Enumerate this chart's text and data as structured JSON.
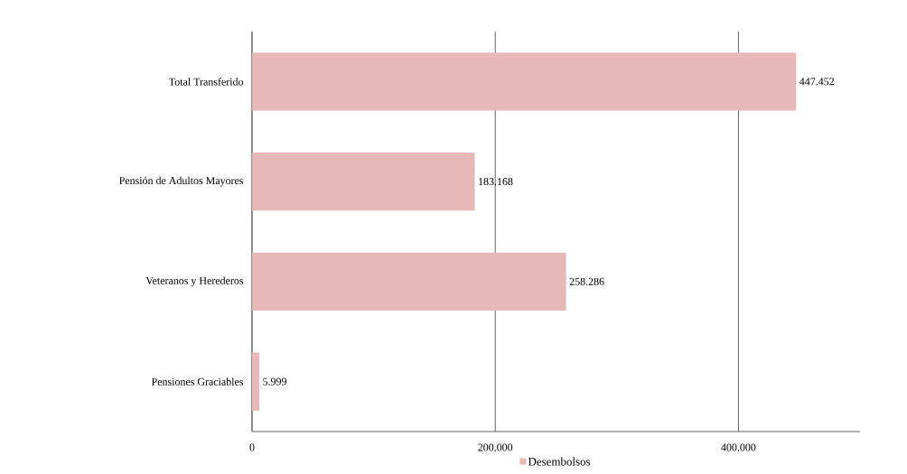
{
  "chart_data": {
    "type": "bar",
    "orientation": "horizontal",
    "categories": [
      "Total Transferido",
      "Pensión de Adultos Mayores",
      "Veteranos y Herederos",
      "Pensiones Graciables"
    ],
    "series": [
      {
        "name": "Desembolsos",
        "color": "#e6b8b7",
        "values": [
          447452,
          183168,
          258286,
          5999
        ],
        "value_labels": [
          "447.452",
          "183.168",
          "258.286",
          "5.999"
        ]
      }
    ],
    "xlim": [
      0,
      500000
    ],
    "xticks": [
      0,
      {
        "value": 200000,
        "label": "200.000"
      },
      {
        "value": 400000,
        "label": "400.000"
      }
    ],
    "grid": "x",
    "legend": "bottom"
  }
}
